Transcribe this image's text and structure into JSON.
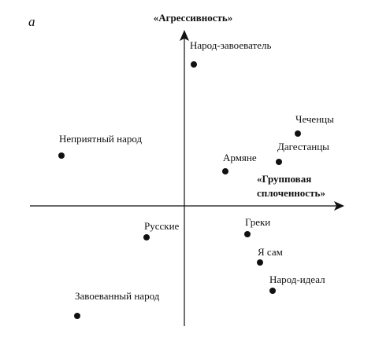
{
  "chart_data": {
    "type": "scatter",
    "panel_label": "a",
    "y_axis_label": "«Агрессивность»",
    "x_axis_label_lines": [
      "«Групповая",
      "сплоченность»"
    ],
    "grid": false,
    "xlim": [
      -5,
      5
    ],
    "ylim": [
      -5,
      5
    ],
    "points": [
      {
        "label": "Народ-завоеватель",
        "x": 0.3,
        "y": 4.5
      },
      {
        "label": "Чеченцы",
        "x": 3.6,
        "y": 2.3
      },
      {
        "label": "Дагестанцы",
        "x": 3.0,
        "y": 1.4
      },
      {
        "label": "Армяне",
        "x": 1.3,
        "y": 1.1
      },
      {
        "label": "Неприятный народ",
        "x": -3.9,
        "y": 1.6
      },
      {
        "label": "Русские",
        "x": -1.2,
        "y": -1.0
      },
      {
        "label": "Греки",
        "x": 2.0,
        "y": -0.9
      },
      {
        "label": "Я сам",
        "x": 2.4,
        "y": -1.8
      },
      {
        "label": "Народ-идеал",
        "x": 2.8,
        "y": -2.7
      },
      {
        "label": "Завоеванный народ",
        "x": -3.4,
        "y": -3.5
      }
    ],
    "colors": {
      "marker": "#111111",
      "axis": "#111111"
    }
  }
}
